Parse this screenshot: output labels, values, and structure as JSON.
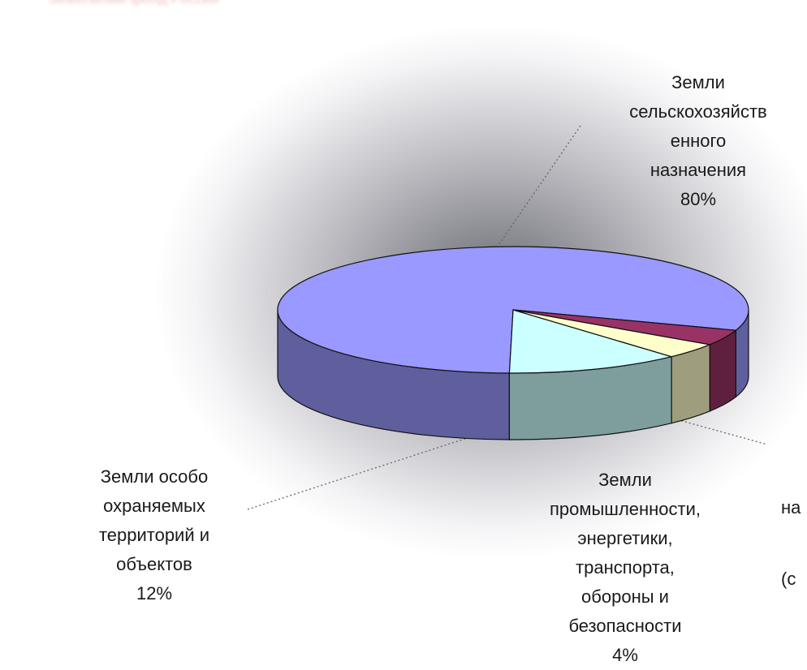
{
  "chart_data": {
    "type": "pie",
    "title": "",
    "slices": [
      {
        "label": "Земли\nсельскохозяйств\nенного\nназначения",
        "value": 80,
        "value_label": "80%",
        "color": "#9999ff"
      },
      {
        "label": "Земли особо\nохраняемых\nтерриторий и\nобъектов",
        "value": 12,
        "value_label": "12%",
        "color": "#ccffff"
      },
      {
        "label": "Земли\nпромышленности,\nэнергетики,\nтранспорта,\nобороны и\nбезопасности",
        "value": 4,
        "value_label": "4%",
        "color": "#ffffcc"
      },
      {
        "label": "на\n(с",
        "value": 4,
        "value_label": "",
        "color": "#993366"
      }
    ],
    "legend": "none"
  },
  "header_blur_text": "Земельный фонд России"
}
